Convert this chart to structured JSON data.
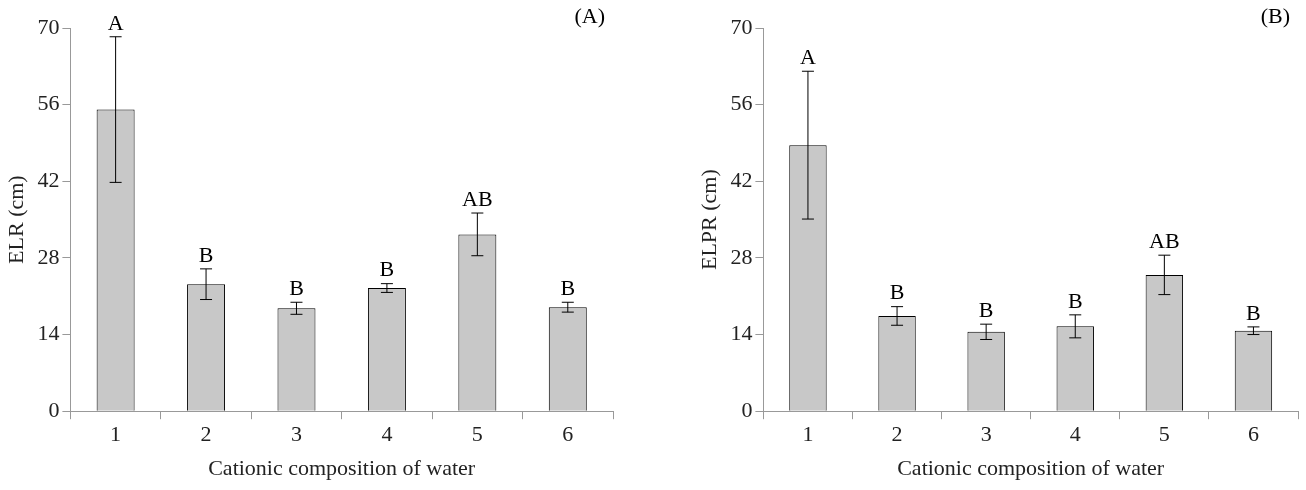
{
  "chart_data": [
    {
      "type": "bar",
      "title": "(A)",
      "xlabel": "Cationic composition of water",
      "ylabel": "ELR (cm)",
      "categories": [
        "1",
        "2",
        "3",
        "4",
        "5",
        "6"
      ],
      "values": [
        55.1,
        23.2,
        18.8,
        22.5,
        32.3,
        19.0
      ],
      "errors": [
        13.3,
        2.8,
        1.1,
        0.8,
        3.9,
        0.9
      ],
      "color": "#c8c8c8",
      "ylim": [
        0,
        70
      ],
      "yticks": [
        0,
        14,
        28,
        42,
        56,
        70
      ],
      "grid": false,
      "annotations": [
        {
          "text": "A",
          "x": "1",
          "y": 68.4
        },
        {
          "text": "B",
          "x": "2",
          "y": 26.0
        },
        {
          "text": "B",
          "x": "3",
          "y": 19.9
        },
        {
          "text": "B",
          "x": "4",
          "y": 23.3
        },
        {
          "text": "AB",
          "x": "5",
          "y": 36.2
        },
        {
          "text": "B",
          "x": "6",
          "y": 19.9
        }
      ]
    },
    {
      "type": "bar",
      "title": "(B)",
      "xlabel": "Cationic composition of water",
      "ylabel": "ELPR (cm)",
      "categories": [
        "1",
        "2",
        "3",
        "4",
        "5",
        "6"
      ],
      "values": [
        48.6,
        17.4,
        14.5,
        15.5,
        24.9,
        14.7
      ],
      "errors": [
        13.5,
        1.7,
        1.4,
        2.1,
        3.6,
        0.7
      ],
      "color": "#c8c8c8",
      "ylim": [
        0,
        70
      ],
      "yticks": [
        0,
        14,
        28,
        42,
        56,
        70
      ],
      "grid": false,
      "annotations": [
        {
          "text": "A",
          "x": "1",
          "y": 62.1
        },
        {
          "text": "B",
          "x": "2",
          "y": 19.1
        },
        {
          "text": "B",
          "x": "3",
          "y": 15.9
        },
        {
          "text": "B",
          "x": "4",
          "y": 17.6
        },
        {
          "text": "AB",
          "x": "5",
          "y": 28.5
        },
        {
          "text": "B",
          "x": "6",
          "y": 15.4
        }
      ]
    }
  ]
}
